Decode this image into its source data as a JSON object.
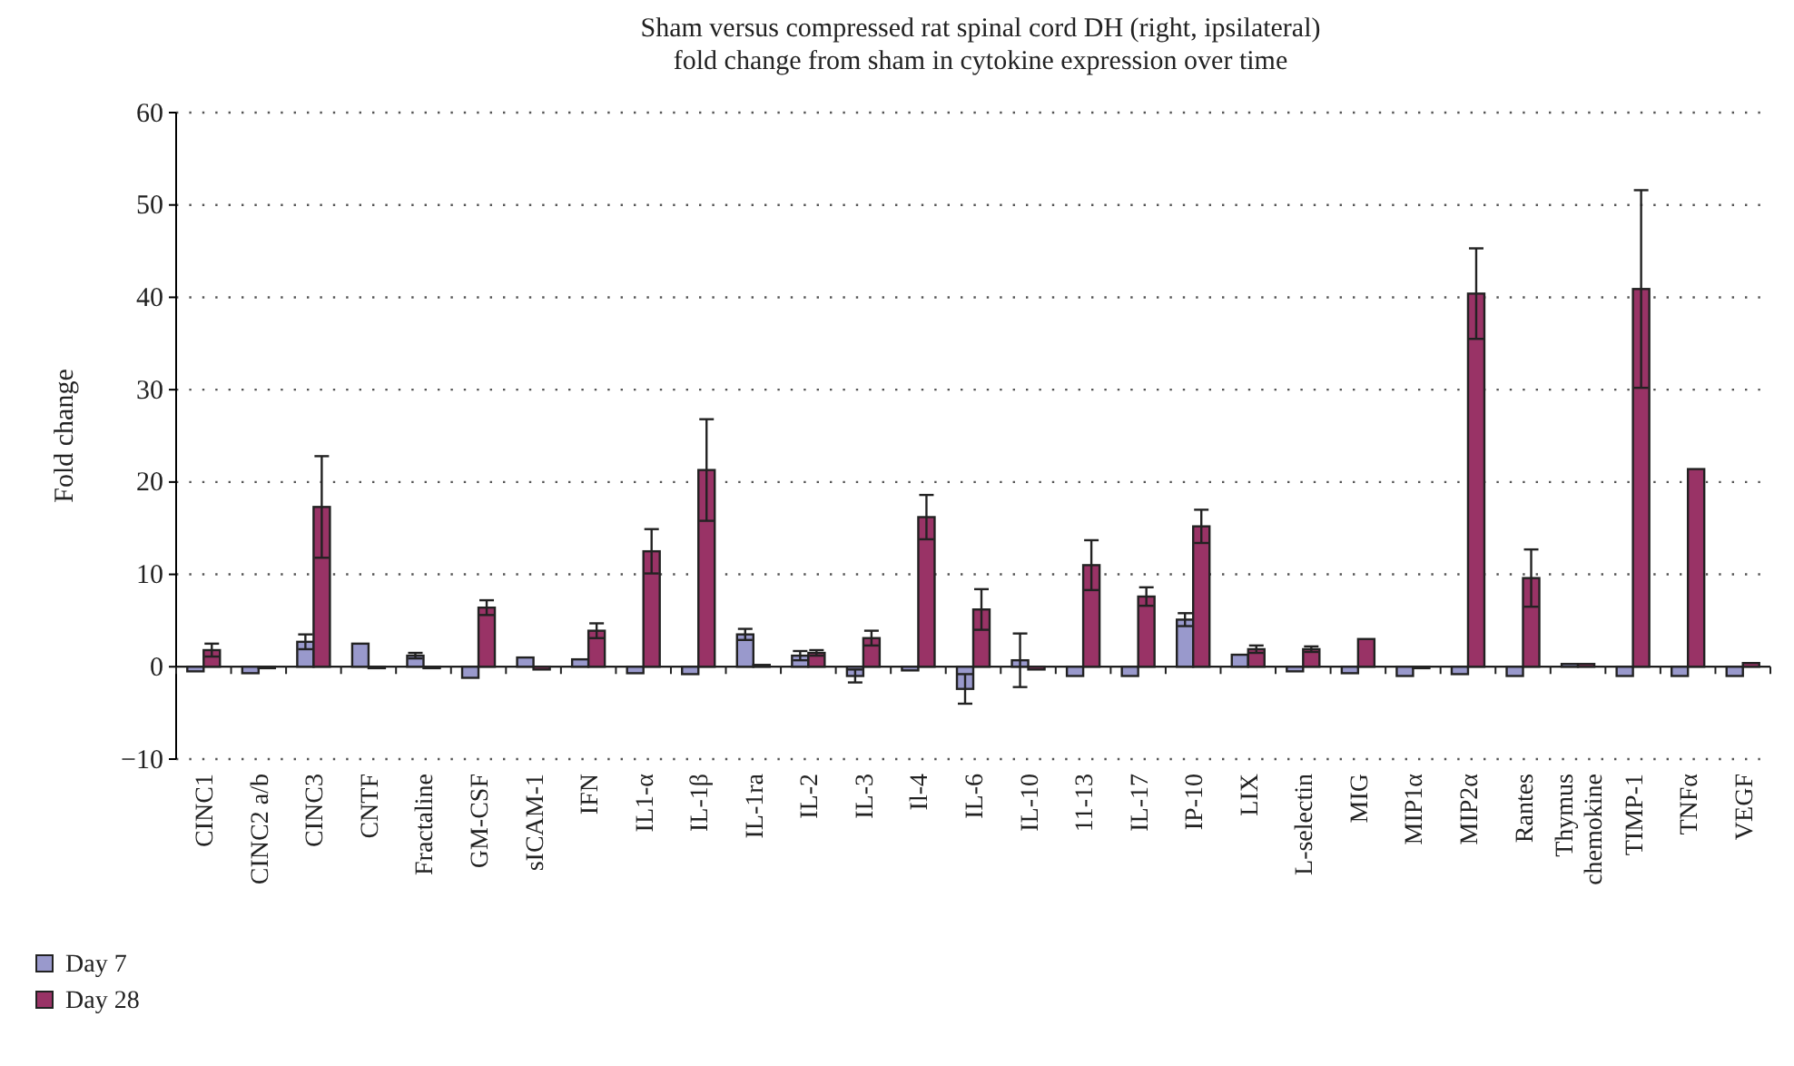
{
  "chart_data": {
    "type": "bar",
    "title": "Sham versus compressed rat spinal cord DH (right, ipsilateral)",
    "subtitle": "fold change from sham in cytokine expression over time",
    "ylabel": "Fold change",
    "categories": [
      "CINC1",
      "CINC2 a/b",
      "CINC3",
      "CNTF",
      "Fractaline",
      "GM-CSF",
      "sICAM-1",
      "IFN",
      "IL1-α",
      "IL-1β",
      "IL-1ra",
      "IL-2",
      "IL-3",
      "Il-4",
      "IL-6",
      "IL-10",
      "11-13",
      "IL-17",
      "IP-10",
      "LIX",
      "L-selectin",
      "MIG",
      "MIP1α",
      "MIP2α",
      "Rantes",
      "Thymus chemokine",
      "TIMP-1",
      "TNFα",
      "VEGF"
    ],
    "series": [
      {
        "name": "Day 7",
        "color": "#9999cc",
        "values": [
          -0.5,
          -0.7,
          2.7,
          2.5,
          1.2,
          -1.2,
          1.0,
          0.8,
          -0.7,
          -0.8,
          3.5,
          1.2,
          -1.0,
          -0.4,
          -2.4,
          0.7,
          -1.0,
          -1.0,
          5.1,
          1.3,
          -0.5,
          -0.7,
          -1.0,
          -0.8,
          -1.0,
          0.3,
          -1.0,
          -1.0,
          -1.0
        ],
        "errors": [
          null,
          null,
          0.8,
          null,
          0.3,
          null,
          null,
          null,
          null,
          null,
          0.6,
          0.5,
          0.7,
          null,
          1.6,
          2.9,
          null,
          null,
          0.7,
          null,
          null,
          null,
          null,
          null,
          null,
          null,
          null,
          null,
          null
        ]
      },
      {
        "name": "Day 28",
        "color": "#993366",
        "values": [
          1.8,
          0,
          17.3,
          0,
          0,
          6.4,
          -0.3,
          3.9,
          12.5,
          21.3,
          0.2,
          1.5,
          3.1,
          16.2,
          6.2,
          -0.3,
          11.0,
          7.6,
          15.2,
          1.9,
          1.9,
          3.0,
          0,
          40.4,
          9.6,
          0.3,
          40.9,
          21.4,
          0.4
        ],
        "errors": [
          0.7,
          null,
          5.5,
          null,
          null,
          0.8,
          null,
          0.8,
          2.4,
          5.5,
          null,
          0.3,
          0.8,
          2.4,
          2.2,
          null,
          2.7,
          1.0,
          1.8,
          0.4,
          0.3,
          null,
          null,
          4.9,
          3.1,
          null,
          10.7,
          null,
          null
        ]
      }
    ],
    "ylim": [
      -10,
      60
    ],
    "yticks": [
      {
        "value": -10,
        "label": "−10"
      },
      0,
      10,
      20,
      30,
      40,
      50,
      60
    ],
    "grid": "y",
    "legend": "bottom left"
  }
}
